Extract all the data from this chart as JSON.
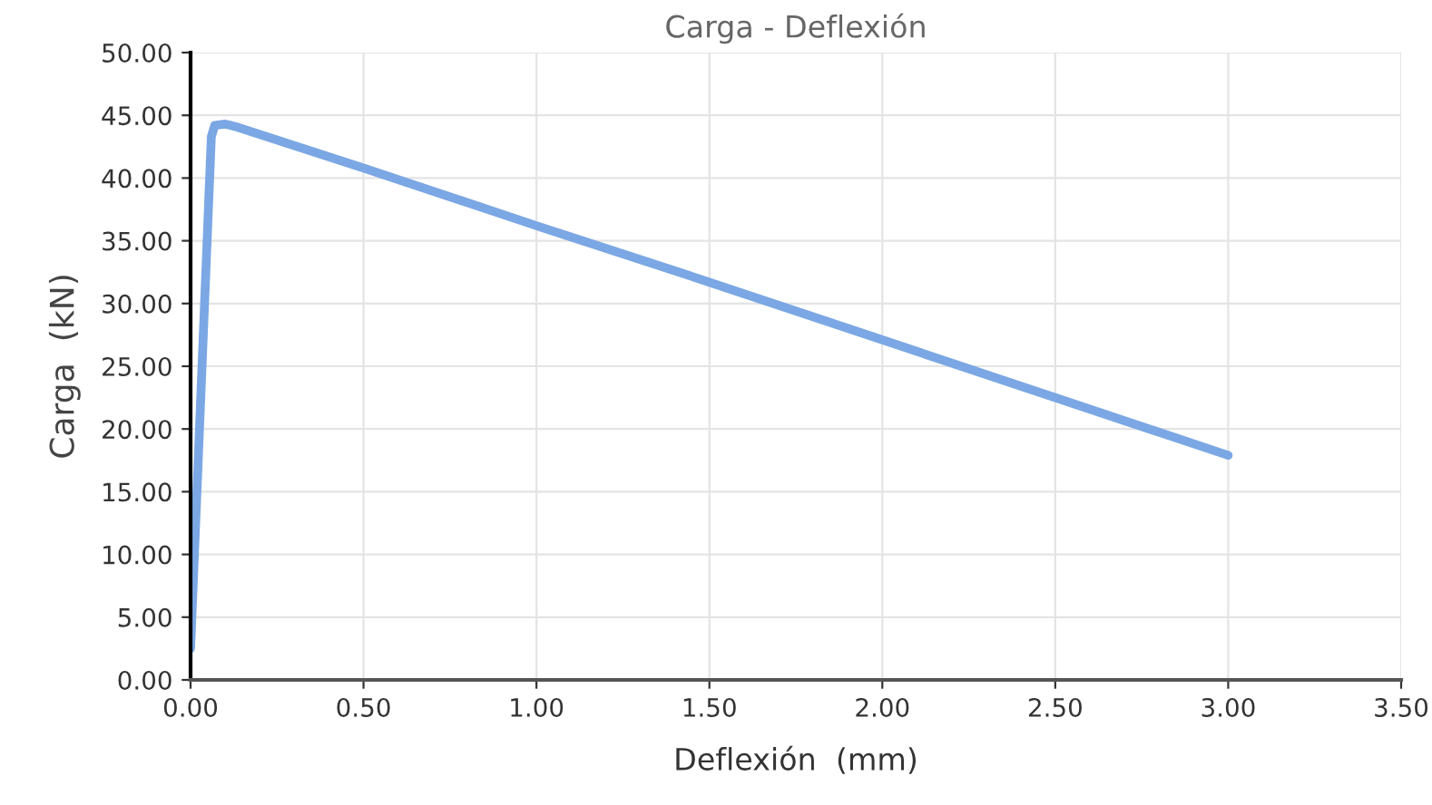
{
  "chart_data": {
    "type": "line",
    "title": "Carga - Deflexión",
    "xlabel": "Deflexión  (mm)",
    "ylabel": "Carga  (kN)",
    "series": [
      {
        "color": "#7ba7e4",
        "x": [
          0.0,
          0.06,
          0.07,
          0.1,
          0.13,
          0.5,
          1.0,
          1.5,
          2.0,
          2.5,
          3.0
        ],
        "values": [
          2.5,
          43.3,
          44.2,
          44.3,
          44.1,
          40.8,
          36.2,
          31.7,
          27.1,
          22.5,
          17.9
        ]
      }
    ],
    "xlim": [
      0,
      3.5
    ],
    "xticks": [
      {
        "value": 0,
        "label": "0.00"
      },
      {
        "value": 0.5,
        "label": "0.50"
      },
      {
        "value": 1,
        "label": "1.00"
      },
      {
        "value": 1.5,
        "label": "1.50"
      },
      {
        "value": 2,
        "label": "2.00"
      },
      {
        "value": 2.5,
        "label": "2.50"
      },
      {
        "value": 3,
        "label": "3.00"
      },
      {
        "value": 3.5,
        "label": "3.50"
      }
    ],
    "ylim": [
      0,
      50
    ],
    "yticks": [
      {
        "value": 0,
        "label": "0.00"
      },
      {
        "value": 5,
        "label": "5.00"
      },
      {
        "value": 10,
        "label": "10.00"
      },
      {
        "value": 15,
        "label": "15.00"
      },
      {
        "value": 20,
        "label": "20.00"
      },
      {
        "value": 25,
        "label": "25.00"
      },
      {
        "value": 30,
        "label": "30.00"
      },
      {
        "value": 35,
        "label": "35.00"
      },
      {
        "value": 40,
        "label": "40.00"
      },
      {
        "value": 45,
        "label": "45.00"
      },
      {
        "value": 50,
        "label": "50.00"
      }
    ],
    "grid": true,
    "marker": "none",
    "line_style": "solid"
  }
}
